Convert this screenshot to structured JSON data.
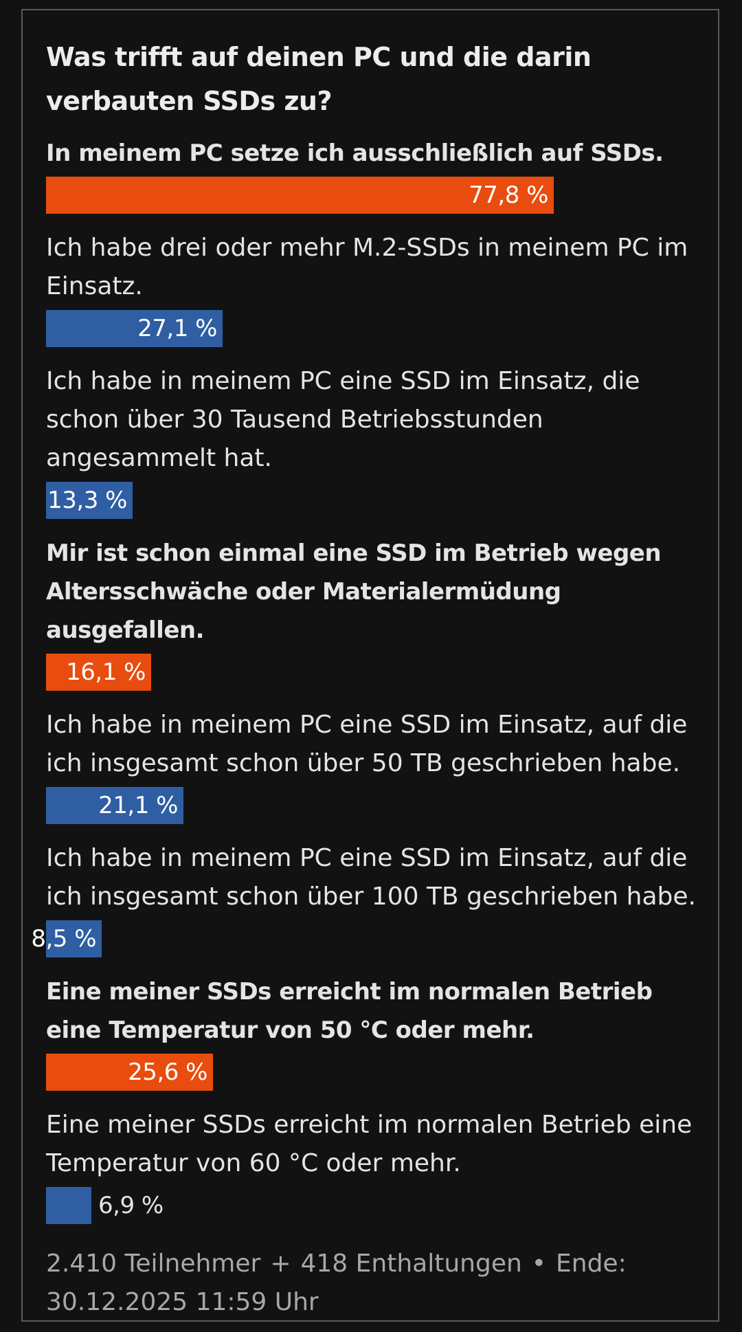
{
  "poll": {
    "title": "Was trifft auf deinen PC und die darin verbauten SSDs zu?",
    "options": [
      {
        "label": "In meinem PC setze ich ausschließlich auf SSDs.",
        "value_text": "77,8 %",
        "percent": 77.8,
        "bold": true,
        "color": "#e84c0e"
      },
      {
        "label": "Ich habe drei oder mehr M.2-SSDs in meinem PC im Einsatz.",
        "value_text": "27,1 %",
        "percent": 27.1,
        "bold": false,
        "color": "#2f5ea3"
      },
      {
        "label": "Ich habe in meinem PC eine SSD im Einsatz, die schon über 30 Tausend Betriebsstunden angesammelt hat.",
        "value_text": "13,3 %",
        "percent": 13.3,
        "bold": false,
        "color": "#2f5ea3"
      },
      {
        "label": "Mir ist schon einmal eine SSD im Betrieb wegen Altersschwäche oder Materialermüdung ausgefallen.",
        "value_text": "16,1 %",
        "percent": 16.1,
        "bold": true,
        "color": "#e84c0e"
      },
      {
        "label": "Ich habe in meinem PC eine SSD im Einsatz, auf die ich insgesamt schon über 50 TB geschrieben habe.",
        "value_text": "21,1 %",
        "percent": 21.1,
        "bold": false,
        "color": "#2f5ea3"
      },
      {
        "label": "Ich habe in meinem PC eine SSD im Einsatz, auf die ich insgesamt schon über 100 TB geschrieben habe.",
        "value_text": "8,5 %",
        "percent": 8.5,
        "bold": false,
        "color": "#2f5ea3"
      },
      {
        "label": "Eine meiner SSDs erreicht im normalen Betrieb eine Temperatur von 50 °C oder mehr.",
        "value_text": "25,6 %",
        "percent": 25.6,
        "bold": true,
        "color": "#e84c0e"
      },
      {
        "label": "Eine meiner SSDs erreicht im normalen Betrieb eine Temperatur von 60 °C oder mehr.",
        "value_text": "6,9 %",
        "percent": 6.9,
        "bold": false,
        "color": "#2f5ea3"
      }
    ],
    "footer": {
      "participants": "2.410 Teilnehmer",
      "plus": "+",
      "abstentions": "418 Enthaltungen",
      "bullet": "•",
      "end_label": "Ende:",
      "end_date": "30.12.2025 11:59 Uhr"
    }
  }
}
